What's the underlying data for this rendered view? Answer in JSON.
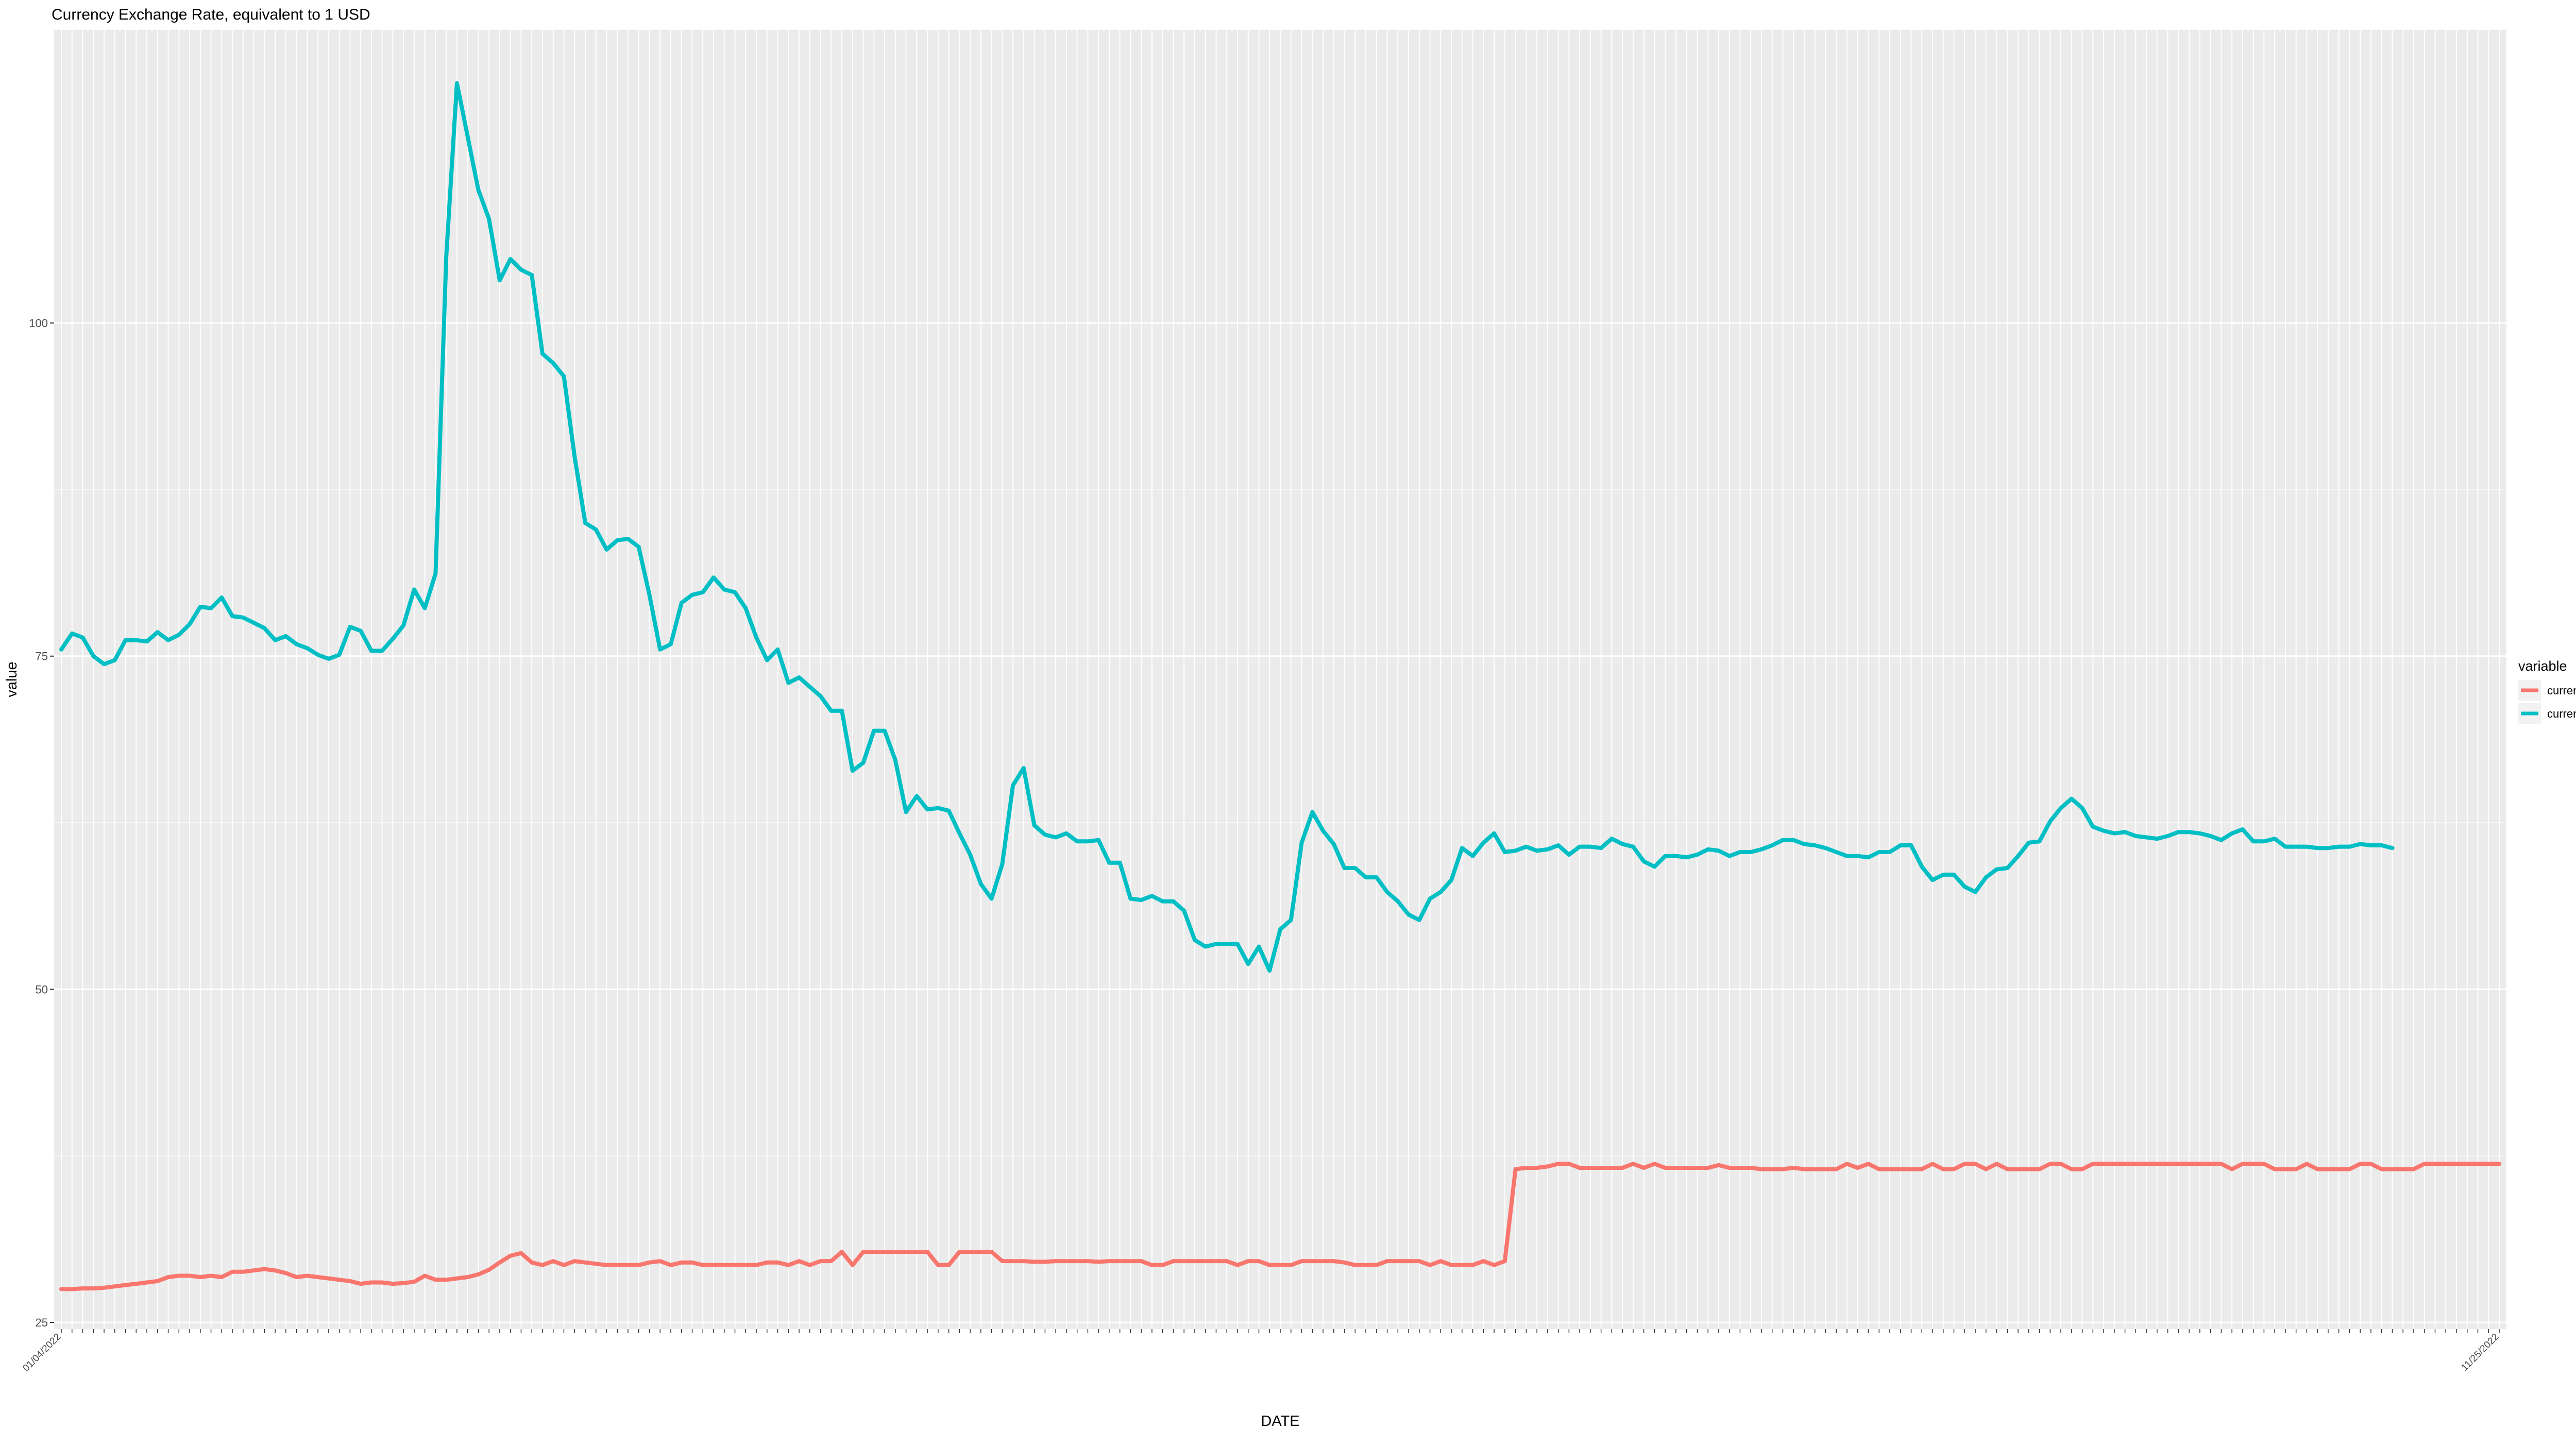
{
  "chart_data": {
    "type": "line",
    "title": "Currency Exchange Rate, equivalent to 1 USD",
    "xlabel": "DATE",
    "ylabel": "value",
    "ylim": [
      24.5,
      122
    ],
    "yticks": [
      25,
      50,
      75,
      100
    ],
    "grid": true,
    "legend": {
      "title": "variable",
      "position": "right"
    },
    "x_ticklabels": [
      "01/04/2022",
      "11/25/2022"
    ],
    "series": [
      {
        "name": "currency_UAH",
        "color": "#F8766D",
        "values": [
          27.5,
          27.5,
          27.55,
          27.55,
          27.6,
          27.7,
          27.8,
          27.9,
          28.0,
          28.1,
          28.4,
          28.5,
          28.5,
          28.4,
          28.5,
          28.4,
          28.8,
          28.8,
          28.9,
          29.0,
          28.9,
          28.7,
          28.4,
          28.5,
          28.4,
          28.3,
          28.2,
          28.1,
          27.9,
          28.0,
          28.0,
          27.9,
          27.95,
          28.05,
          28.5,
          28.2,
          28.2,
          28.3,
          28.4,
          28.6,
          28.95,
          29.5,
          30.0,
          30.2,
          29.5,
          29.3,
          29.6,
          29.3,
          29.6,
          29.5,
          29.4,
          29.3,
          29.3,
          29.3,
          29.3,
          29.5,
          29.6,
          29.3,
          29.5,
          29.5,
          29.3,
          29.3,
          29.3,
          29.3,
          29.3,
          29.3,
          29.5,
          29.5,
          29.3,
          29.6,
          29.3,
          29.6,
          29.6,
          30.3,
          29.3,
          30.3,
          30.3,
          30.3,
          30.3,
          30.3,
          30.3,
          30.3,
          29.3,
          29.3,
          30.3,
          30.3,
          30.3,
          30.3,
          29.6,
          29.6,
          29.6,
          29.55,
          29.55,
          29.6,
          29.6,
          29.6,
          29.6,
          29.55,
          29.6,
          29.6,
          29.6,
          29.6,
          29.3,
          29.3,
          29.6,
          29.6,
          29.6,
          29.6,
          29.6,
          29.6,
          29.3,
          29.6,
          29.6,
          29.3,
          29.3,
          29.3,
          29.6,
          29.6,
          29.6,
          29.6,
          29.5,
          29.3,
          29.3,
          29.3,
          29.6,
          29.6,
          29.6,
          29.6,
          29.3,
          29.6,
          29.3,
          29.3,
          29.3,
          29.6,
          29.3,
          29.6,
          36.5,
          36.6,
          36.6,
          36.7,
          36.9,
          36.9,
          36.6,
          36.6,
          36.6,
          36.6,
          36.6,
          36.9,
          36.6,
          36.9,
          36.6,
          36.6,
          36.6,
          36.6,
          36.6,
          36.8,
          36.6,
          36.6,
          36.6,
          36.5,
          36.5,
          36.5,
          36.6,
          36.5,
          36.5,
          36.5,
          36.5,
          36.9,
          36.6,
          36.9,
          36.5,
          36.5,
          36.5,
          36.5,
          36.5,
          36.9,
          36.5,
          36.5,
          36.9,
          36.9,
          36.5,
          36.9,
          36.5,
          36.5,
          36.5,
          36.5,
          36.9,
          36.9,
          36.5,
          36.5,
          36.9,
          36.9,
          36.9,
          36.9,
          36.9,
          36.9,
          36.9,
          36.9,
          36.9,
          36.9,
          36.9,
          36.9,
          36.9,
          36.5,
          36.9,
          36.9,
          36.9,
          36.5,
          36.5,
          36.5,
          36.9,
          36.5,
          36.5,
          36.5,
          36.5,
          36.9,
          36.9,
          36.5,
          36.5,
          36.5,
          36.5,
          36.9,
          36.9,
          36.9,
          36.9,
          36.9,
          36.9,
          36.9,
          36.9
        ]
      },
      {
        "name": "currency_RUB",
        "color": "#00BFC4",
        "values": [
          75.5,
          76.7,
          76.4,
          75.0,
          74.4,
          74.7,
          76.2,
          76.2,
          76.1,
          76.8,
          76.2,
          76.6,
          77.4,
          78.7,
          78.6,
          79.4,
          78.0,
          77.9,
          77.5,
          77.1,
          76.2,
          76.5,
          75.9,
          75.6,
          75.1,
          74.8,
          75.1,
          77.2,
          76.9,
          75.4,
          75.4,
          76.3,
          77.3,
          80.0,
          78.6,
          81.2,
          105.0,
          118.0,
          114.0,
          110.0,
          107.8,
          103.2,
          104.8,
          104.0,
          103.6,
          97.7,
          97.0,
          96.0,
          90.0,
          85.0,
          84.5,
          83.0,
          83.7,
          83.8,
          83.2,
          79.6,
          75.5,
          75.9,
          79.0,
          79.6,
          79.8,
          80.9,
          80.0,
          79.8,
          78.6,
          76.4,
          74.7,
          75.5,
          73.0,
          73.4,
          72.7,
          72.0,
          70.9,
          70.9,
          66.4,
          67.0,
          69.4,
          69.4,
          67.2,
          63.3,
          64.5,
          63.5,
          63.6,
          63.4,
          61.7,
          60.1,
          57.9,
          56.8,
          59.4,
          65.3,
          66.6,
          62.3,
          61.6,
          61.4,
          61.7,
          61.1,
          61.1,
          61.2,
          59.5,
          59.5,
          56.8,
          56.7,
          57.0,
          56.6,
          56.6,
          55.9,
          53.7,
          53.2,
          53.4,
          53.4,
          53.4,
          51.9,
          53.2,
          51.4,
          54.5,
          55.2,
          61.0,
          63.3,
          61.9,
          60.9,
          59.1,
          59.1,
          58.4,
          58.4,
          57.3,
          56.6,
          55.6,
          55.2,
          56.8,
          57.3,
          58.2,
          60.6,
          60.0,
          61.0,
          61.7,
          60.3,
          60.4,
          60.7,
          60.4,
          60.5,
          60.8,
          60.1,
          60.7,
          60.7,
          60.6,
          61.3,
          60.9,
          60.7,
          59.6,
          59.2,
          60.0,
          60.0,
          59.9,
          60.1,
          60.5,
          60.4,
          60.0,
          60.3,
          60.3,
          60.5,
          60.8,
          61.2,
          61.2,
          60.9,
          60.8,
          60.6,
          60.3,
          60.0,
          60.0,
          59.9,
          60.3,
          60.3,
          60.8,
          60.8,
          59.2,
          58.2,
          58.6,
          58.6,
          57.7,
          57.3,
          58.4,
          59.0,
          59.1,
          60.0,
          61.0,
          61.1,
          62.6,
          63.6,
          64.3,
          63.6,
          62.2,
          61.9,
          61.7,
          61.8,
          61.5,
          61.4,
          61.3,
          61.5,
          61.8,
          61.8,
          61.7,
          61.5,
          61.2,
          61.7,
          62.0,
          61.1,
          61.1,
          61.3,
          60.7,
          60.7,
          60.7,
          60.6,
          60.6,
          60.7,
          60.7,
          60.9,
          60.8,
          60.8,
          60.6
        ]
      }
    ]
  }
}
